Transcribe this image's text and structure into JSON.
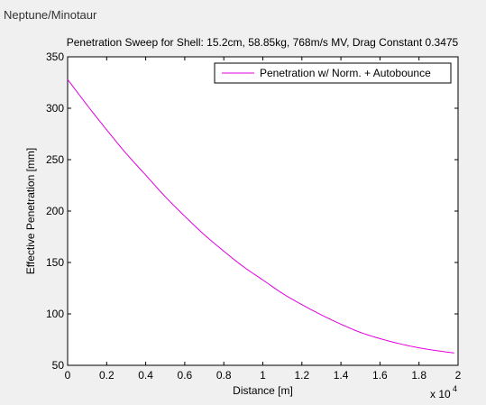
{
  "window": {
    "title": "Neptune/Minotaur"
  },
  "colors": {
    "series": "#e000e0",
    "axes": "#000000",
    "figure_bg": "#f0f0f0",
    "plot_bg": "#ffffff"
  },
  "chart_data": {
    "type": "line",
    "title": "Penetration Sweep for Shell: 15.2cm, 58.85kg, 768m/s MV, Drag Constant 0.3475",
    "xlabel": "Distance [m]",
    "ylabel": "Effective Penetration [mm]",
    "x_exponent_label": "x 10",
    "x_exponent_power": "4",
    "xlim": [
      0,
      2
    ],
    "ylim": [
      50,
      350
    ],
    "xticks": [
      0,
      0.2,
      0.4,
      0.6,
      0.8,
      1,
      1.2,
      1.4,
      1.6,
      1.8,
      2
    ],
    "xtick_labels": [
      "0",
      "0.2",
      "0.4",
      "0.6",
      "0.8",
      "1",
      "1.2",
      "1.4",
      "1.6",
      "1.8",
      "2"
    ],
    "yticks": [
      50,
      100,
      150,
      200,
      250,
      300,
      350
    ],
    "ytick_labels": [
      "50",
      "100",
      "150",
      "200",
      "250",
      "300",
      "350"
    ],
    "grid": false,
    "legend_position": "top-right",
    "series": [
      {
        "name": "Penetration w/ Norm. + Autobounce",
        "color": "#e000e0",
        "x": [
          0,
          0.1,
          0.2,
          0.3,
          0.4,
          0.5,
          0.6,
          0.7,
          0.8,
          0.9,
          1.0,
          1.1,
          1.2,
          1.3,
          1.4,
          1.5,
          1.6,
          1.7,
          1.8,
          1.9,
          1.98
        ],
        "y": [
          328,
          303,
          279,
          256,
          235,
          214,
          195,
          177,
          161,
          146,
          133,
          120,
          109,
          99,
          90,
          82,
          76,
          71,
          67,
          64,
          62
        ]
      }
    ]
  }
}
